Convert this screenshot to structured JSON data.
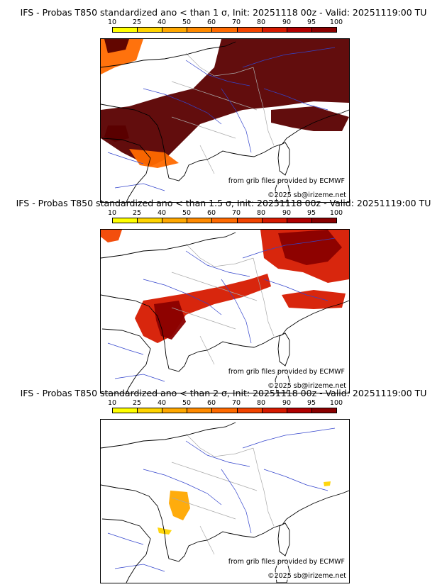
{
  "colorbar": {
    "labels": [
      "10",
      "25",
      "40",
      "50",
      "60",
      "70",
      "80",
      "90",
      "95",
      "100"
    ],
    "colors": [
      "#ffff00",
      "#ffd400",
      "#ffa800",
      "#ff8a00",
      "#ff6a00",
      "#f24400",
      "#d61a00",
      "#b00000",
      "#8a0000",
      "#5a0000"
    ]
  },
  "panels": [
    {
      "title": "IFS - Probas T850  standardized ano < than 1 σ, Init: 20251118 00z - Valid: 20251119:00 TU",
      "credit": "from grib files provided by ECMWF",
      "copyright": "©2025 sb@irizeme.net",
      "coverage": "high"
    },
    {
      "title": "IFS - Probas T850  standardized ano < than 1.5 σ, Init: 20251118 00z - Valid: 20251119:00 TU",
      "credit": "from grib files provided by ECMWF",
      "copyright": "©2025 sb@irizeme.net",
      "coverage": "medium"
    },
    {
      "title": "IFS - Probas T850  standardized ano < than 2 σ, Init: 20251118 00z - Valid: 20251119:00 TU",
      "credit": "from grib files provided by ECMWF",
      "copyright": "©2025 sb@irizeme.net",
      "coverage": "low"
    }
  ],
  "colors": {
    "coast": "#000000",
    "rivers": "#3344cc",
    "borders": "#aaaaaa"
  }
}
